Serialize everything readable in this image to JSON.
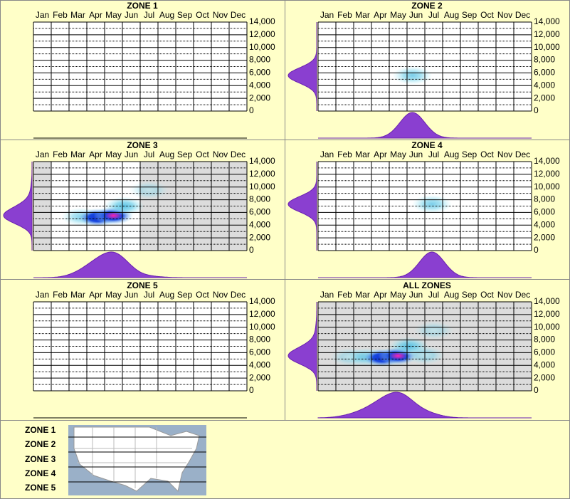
{
  "chart_data": [
    {
      "type": "heatmap",
      "title": "ZONE 1",
      "categories": [
        "Jan",
        "Feb",
        "Mar",
        "Apr",
        "May",
        "Jun",
        "Jul",
        "Aug",
        "Sep",
        "Oct",
        "Nov",
        "Dec"
      ],
      "ylim": [
        0,
        14000
      ],
      "yticks": [
        0,
        {
          "value": 2000,
          "label": "2,000"
        },
        {
          "value": 4000,
          "label": "4,000"
        },
        {
          "value": 6000,
          "label": "6,000"
        },
        {
          "value": 8000,
          "label": "8,000"
        },
        {
          "value": 10000,
          "label": "10,000"
        },
        {
          "value": 12000,
          "label": "12,000"
        },
        {
          "value": 14000,
          "label": "14,000"
        }
      ],
      "shaded": [
        false,
        false,
        false,
        false,
        false,
        false,
        false,
        false,
        false,
        false,
        false,
        false
      ],
      "hotspots": []
    },
    {
      "type": "heatmap",
      "title": "ZONE 2",
      "categories": [
        "Jan",
        "Feb",
        "Mar",
        "Apr",
        "May",
        "Jun",
        "Jul",
        "Aug",
        "Sep",
        "Oct",
        "Nov",
        "Dec"
      ],
      "ylim": [
        0,
        14000
      ],
      "yticks": [
        0,
        {
          "value": 2000,
          "label": "2,000"
        },
        {
          "value": 4000,
          "label": "4,000"
        },
        {
          "value": 6000,
          "label": "6,000"
        },
        {
          "value": 8000,
          "label": "8,000"
        },
        {
          "value": 10000,
          "label": "10,000"
        },
        {
          "value": 12000,
          "label": "12,000"
        },
        {
          "value": 14000,
          "label": "14,000"
        }
      ],
      "shaded": [
        false,
        false,
        false,
        false,
        false,
        false,
        false,
        false,
        false,
        false,
        false,
        false
      ],
      "hotspots": [
        {
          "month": 4.8,
          "elevation": 5600,
          "intensity": 0.3
        }
      ]
    },
    {
      "type": "heatmap",
      "title": "ZONE 3",
      "categories": [
        "Jan",
        "Feb",
        "Mar",
        "Apr",
        "May",
        "Jun",
        "Jul",
        "Aug",
        "Sep",
        "Oct",
        "Nov",
        "Dec"
      ],
      "ylim": [
        0,
        14000
      ],
      "yticks": [
        0,
        {
          "value": 2000,
          "label": "2,000"
        },
        {
          "value": 4000,
          "label": "4,000"
        },
        {
          "value": 6000,
          "label": "6,000"
        },
        {
          "value": 8000,
          "label": "8,000"
        },
        {
          "value": 10000,
          "label": "10,000"
        },
        {
          "value": 12000,
          "label": "12,000"
        },
        {
          "value": 14000,
          "label": "14,000"
        }
      ],
      "shaded": [
        true,
        false,
        false,
        false,
        false,
        false,
        true,
        true,
        true,
        true,
        true,
        true
      ],
      "hotspots": [
        {
          "month": 2.2,
          "elevation": 5300,
          "intensity": 0.25
        },
        {
          "month": 3.1,
          "elevation": 5200,
          "intensity": 0.7
        },
        {
          "month": 4.0,
          "elevation": 5500,
          "intensity": 1
        },
        {
          "month": 4.6,
          "elevation": 7000,
          "intensity": 0.45
        },
        {
          "month": 6.0,
          "elevation": 9500,
          "intensity": 0.08
        }
      ]
    },
    {
      "type": "heatmap",
      "title": "ZONE 4",
      "categories": [
        "Jan",
        "Feb",
        "Mar",
        "Apr",
        "May",
        "Jun",
        "Jul",
        "Aug",
        "Sep",
        "Oct",
        "Nov",
        "Dec"
      ],
      "ylim": [
        0,
        14000
      ],
      "yticks": [
        0,
        {
          "value": 2000,
          "label": "2,000"
        },
        {
          "value": 4000,
          "label": "4,000"
        },
        {
          "value": 6000,
          "label": "6,000"
        },
        {
          "value": 8000,
          "label": "8,000"
        },
        {
          "value": 10000,
          "label": "10,000"
        },
        {
          "value": 12000,
          "label": "12,000"
        },
        {
          "value": 14000,
          "label": "14,000"
        }
      ],
      "shaded": [
        false,
        false,
        false,
        false,
        false,
        false,
        false,
        false,
        false,
        false,
        false,
        false
      ],
      "hotspots": [
        {
          "month": 5.9,
          "elevation": 7300,
          "intensity": 0.3
        }
      ]
    },
    {
      "type": "heatmap",
      "title": "ZONE 5",
      "categories": [
        "Jan",
        "Feb",
        "Mar",
        "Apr",
        "May",
        "Jun",
        "Jul",
        "Aug",
        "Sep",
        "Oct",
        "Nov",
        "Dec"
      ],
      "ylim": [
        0,
        14000
      ],
      "yticks": [
        0,
        {
          "value": 2000,
          "label": "2,000"
        },
        {
          "value": 4000,
          "label": "4,000"
        },
        {
          "value": 6000,
          "label": "6,000"
        },
        {
          "value": 8000,
          "label": "8,000"
        },
        {
          "value": 10000,
          "label": "10,000"
        },
        {
          "value": 12000,
          "label": "12,000"
        },
        {
          "value": 14000,
          "label": "14,000"
        }
      ],
      "shaded": [
        false,
        false,
        false,
        false,
        false,
        false,
        false,
        false,
        false,
        false,
        false,
        false
      ],
      "hotspots": []
    },
    {
      "type": "heatmap",
      "title": "ALL ZONES",
      "categories": [
        "Jan",
        "Feb",
        "Mar",
        "Apr",
        "May",
        "Jun",
        "Jul",
        "Aug",
        "Sep",
        "Oct",
        "Nov",
        "Dec"
      ],
      "ylim": [
        0,
        14000
      ],
      "yticks": [
        0,
        {
          "value": 2000,
          "label": "2,000"
        },
        {
          "value": 4000,
          "label": "4,000"
        },
        {
          "value": 6000,
          "label": "6,000"
        },
        {
          "value": 8000,
          "label": "8,000"
        },
        {
          "value": 10000,
          "label": "10,000"
        },
        {
          "value": 12000,
          "label": "12,000"
        },
        {
          "value": 14000,
          "label": "14,000"
        }
      ],
      "shaded": [
        true,
        true,
        true,
        true,
        true,
        true,
        true,
        true,
        true,
        true,
        true,
        true
      ],
      "hotspots": [
        {
          "month": 1.3,
          "elevation": 5300,
          "intensity": 0.12
        },
        {
          "month": 2.2,
          "elevation": 5300,
          "intensity": 0.3
        },
        {
          "month": 3.1,
          "elevation": 5200,
          "intensity": 0.7
        },
        {
          "month": 4.0,
          "elevation": 5500,
          "intensity": 1
        },
        {
          "month": 4.6,
          "elevation": 7000,
          "intensity": 0.45
        },
        {
          "month": 5.5,
          "elevation": 5600,
          "intensity": 0.2
        },
        {
          "month": 6.0,
          "elevation": 9500,
          "intensity": 0.08
        }
      ]
    }
  ],
  "legend": {
    "labels": [
      "ZONE 1",
      "ZONE 2",
      "ZONE 3",
      "ZONE 4",
      "ZONE 5"
    ]
  }
}
